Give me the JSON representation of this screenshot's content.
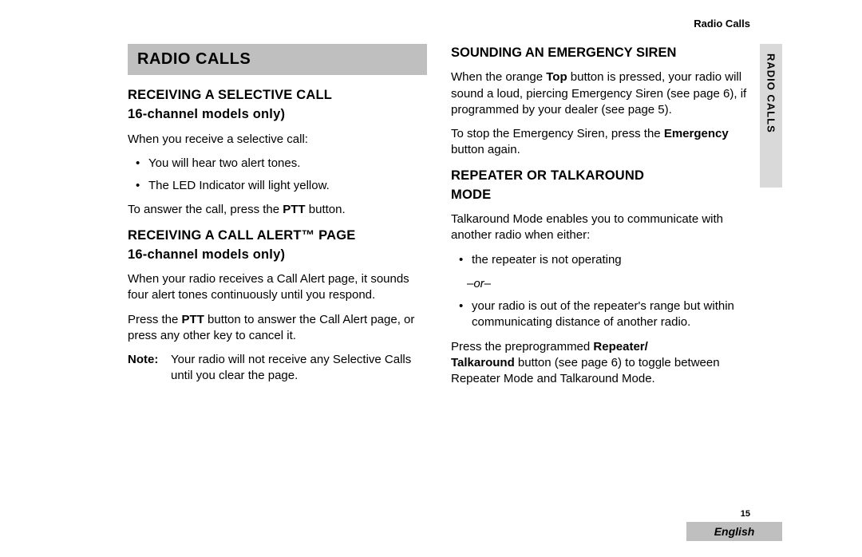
{
  "header_small": "Radio Calls",
  "side_tab": "RADIO CALLS",
  "page_number": "15",
  "language": "English",
  "left": {
    "title": "RADIO CALLS",
    "sec1_h1": "RECEIVING A SELECTIVE CALL",
    "sec1_h2": "16-channel models only)",
    "sec1_p1": "When you receive a selective call:",
    "sec1_b1": "You will hear two alert tones.",
    "sec1_b2": "The LED Indicator will light yellow.",
    "sec1_p2a": "To answer the call, press the ",
    "sec1_p2b": "PTT",
    "sec1_p2c": " button.",
    "sec2_h1": "RECEIVING A CALL ALERT™ PAGE",
    "sec2_h2": "16-channel models only)",
    "sec2_p1": "When your radio receives a Call Alert page, it sounds four alert tones continuously until you respond.",
    "sec2_p2a": "Press the ",
    "sec2_p2b": "PTT",
    "sec2_p2c": " button to answer the Call Alert page, or press any other key to cancel it.",
    "note_label": "Note:",
    "note_body": "Your radio will not receive any Selective Calls until you clear the page."
  },
  "right": {
    "sec3_h": "SOUNDING AN EMERGENCY SIREN",
    "sec3_p1a": "When the orange ",
    "sec3_p1b": "Top",
    "sec3_p1c": " button is pressed, your radio will sound a loud, piercing Emergency Siren (see page 6), if programmed by your dealer (see page 5).",
    "sec3_p2a": "To stop the Emergency Siren, press the ",
    "sec3_p2b": "Emergency",
    "sec3_p2c": " button again.",
    "sec4_h1": "REPEATER OR TALKAROUND",
    "sec4_h2": "MODE",
    "sec4_p1": "Talkaround Mode enables you to communicate with another radio when either:",
    "sec4_b1": "the repeater is not operating",
    "or": "–or–",
    "sec4_b2": "your radio is out of the repeater's range but within communicating distance of another radio.",
    "sec4_p2a": "Press the preprogrammed ",
    "sec4_p2b": "Repeater/",
    "sec4_p2c": "Talkaround",
    "sec4_p2d": " button (see page 6) to toggle between Repeater Mode and Talkaround Mode."
  }
}
